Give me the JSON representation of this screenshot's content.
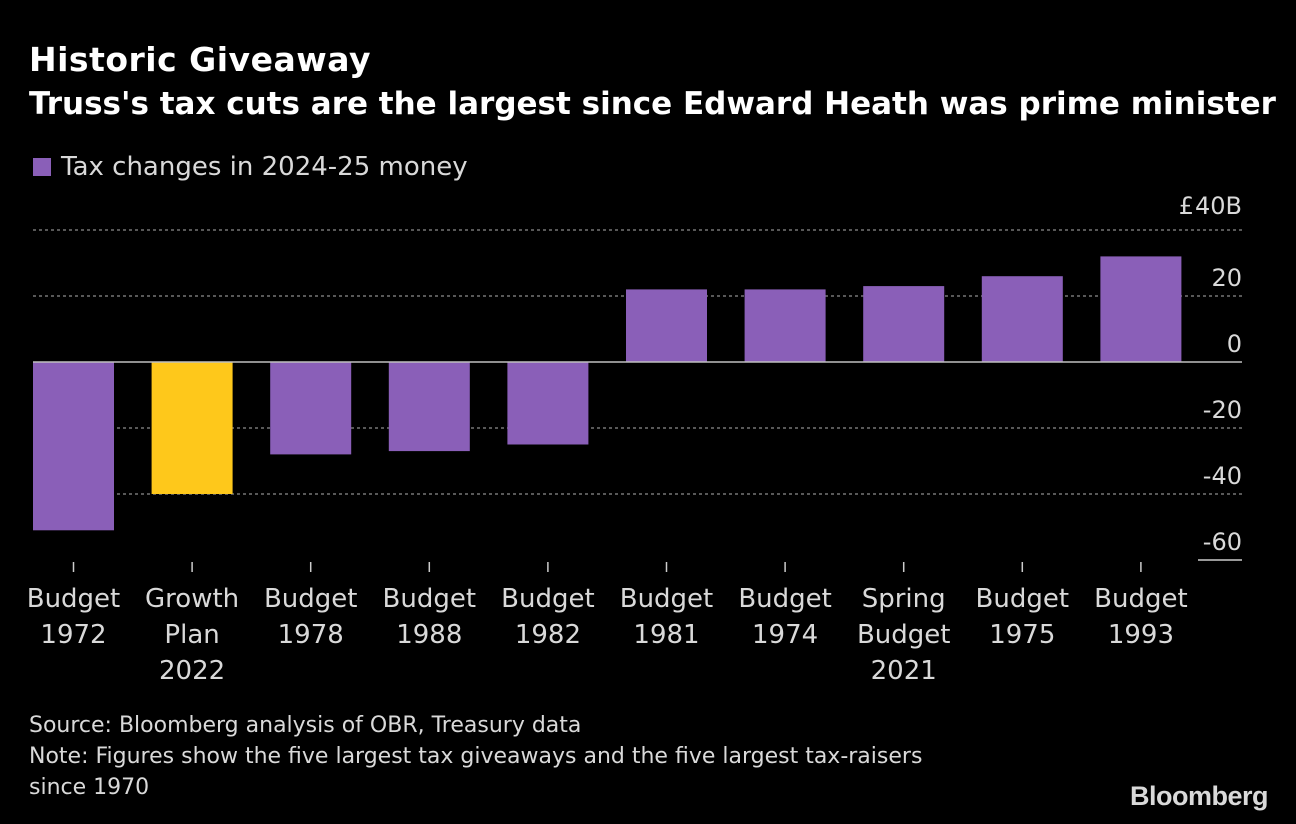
{
  "header": {
    "title": "Historic Giveaway",
    "subtitle": "Truss's tax cuts are the largest since Edward Heath was prime minister"
  },
  "footer": {
    "source": "Source: Bloomberg analysis of OBR, Treasury data",
    "note_line1": "Note: Figures show the five largest tax giveaways and the five largest tax-raisers",
    "note_line2": "since 1970",
    "brand": "Bloomberg"
  },
  "colors": {
    "background": "#000000",
    "series": "#8a5fb8",
    "highlight": "#fec81b",
    "grid": "#8c8c8c",
    "text": "#d9d9d9"
  },
  "chart_data": {
    "type": "bar",
    "title": "Historic Giveaway",
    "subtitle": "Truss's tax cuts are the largest since Edward Heath was prime minister",
    "categories": [
      [
        "Budget",
        "1972"
      ],
      [
        "Growth",
        "Plan",
        "2022"
      ],
      [
        "Budget",
        "1978"
      ],
      [
        "Budget",
        "1988"
      ],
      [
        "Budget",
        "1982"
      ],
      [
        "Budget",
        "1981"
      ],
      [
        "Budget",
        "1974"
      ],
      [
        "Spring",
        "Budget",
        "2021"
      ],
      [
        "Budget",
        "1975"
      ],
      [
        "Budget",
        "1993"
      ]
    ],
    "series": [
      {
        "name": "Tax changes in 2024-25 money",
        "values": [
          -51,
          -40,
          -28,
          -27,
          -25,
          22,
          22,
          23,
          26,
          32
        ]
      }
    ],
    "highlight_index": 1,
    "y_unit": "£",
    "y_unit_suffix": "B",
    "ylim": [
      -60,
      40
    ],
    "yticks": [
      40,
      20,
      0,
      -20,
      -40,
      -60
    ],
    "ytick_labels": [
      "40B",
      "20",
      "0",
      "-20",
      "-40",
      "-60"
    ],
    "y_axis_position": "right",
    "grid": true,
    "legend_position": "top-left"
  }
}
